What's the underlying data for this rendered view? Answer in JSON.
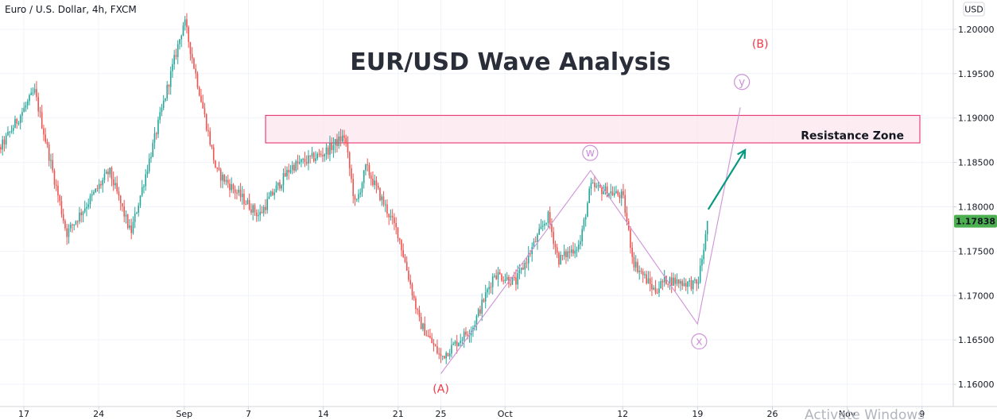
{
  "colors": {
    "up": "#26a69a",
    "down": "#ef5350",
    "grid": "#f0f3fa",
    "axis_line": "#d1d4dc",
    "wave": "#ce93d8",
    "wave_B": "#f23645",
    "arrow": "#089981",
    "zone_fill": "#fce4ec",
    "zone_border": "#e91e63",
    "last_price_bg": "#4caf50"
  },
  "header": {
    "symbol": "Euro / U.S. Dollar, 4h, FXCM",
    "currency_button": "USD"
  },
  "watermark": "Activate Windows",
  "chart_data": {
    "type": "candlestick",
    "title": "EUR/USD Wave Analysis",
    "xlabel": "",
    "ylabel": "",
    "ylim": [
      1.1575,
      1.2033
    ],
    "grid": true,
    "y_ticks": [
      "1.20000",
      "1.19500",
      "1.19000",
      "1.18500",
      "1.18000",
      "1.17500",
      "1.17000",
      "1.16500",
      "1.16000"
    ],
    "x_ticks": [
      "17",
      "24",
      "Sep",
      "7",
      "14",
      "21",
      "25",
      "Oct",
      "12",
      "19",
      "26",
      "Nov",
      "9"
    ],
    "last_price": "1.17838",
    "resistance_zone": {
      "label": "Resistance Zone",
      "low": 1.1872,
      "high": 1.1903
    },
    "wave_labels": [
      "(A)",
      "w",
      "x",
      "y",
      "(B)"
    ],
    "wave_path": [
      {
        "date": "2020-09-25",
        "price": 1.1612
      },
      {
        "date": "2020-10-09",
        "price": 1.1841
      },
      {
        "date": "2020-10-19",
        "price": 1.1668
      },
      {
        "date": "2020-10-23",
        "price": 1.1912
      }
    ],
    "projection_arrow": {
      "from": {
        "date": "2020-10-20",
        "price": 1.1797
      },
      "to": {
        "date": "2020-10-23",
        "price": 1.1872
      }
    },
    "anchors": [
      {
        "date": "2020-08-13",
        "price": 1.183
      },
      {
        "date": "2020-08-18",
        "price": 1.193
      },
      {
        "date": "2020-08-21",
        "price": 1.177
      },
      {
        "date": "2020-08-25",
        "price": 1.184
      },
      {
        "date": "2020-08-27",
        "price": 1.177
      },
      {
        "date": "2020-09-01",
        "price": 1.201
      },
      {
        "date": "2020-09-04",
        "price": 1.184
      },
      {
        "date": "2020-09-08",
        "price": 1.179
      },
      {
        "date": "2020-09-09",
        "price": 1.181
      },
      {
        "date": "2020-09-11",
        "price": 1.1845
      },
      {
        "date": "2020-09-14",
        "price": 1.186
      },
      {
        "date": "2020-09-16",
        "price": 1.188
      },
      {
        "date": "2020-09-17",
        "price": 1.18
      },
      {
        "date": "2020-09-18",
        "price": 1.1845
      },
      {
        "date": "2020-09-21",
        "price": 1.177
      },
      {
        "date": "2020-09-23",
        "price": 1.167
      },
      {
        "date": "2020-09-25",
        "price": 1.163
      },
      {
        "date": "2020-09-28",
        "price": 1.1665
      },
      {
        "date": "2020-09-30",
        "price": 1.1725
      },
      {
        "date": "2020-10-02",
        "price": 1.1715
      },
      {
        "date": "2020-10-05",
        "price": 1.179
      },
      {
        "date": "2020-10-06",
        "price": 1.174
      },
      {
        "date": "2020-10-08",
        "price": 1.1758
      },
      {
        "date": "2020-10-09",
        "price": 1.1823
      },
      {
        "date": "2020-10-12",
        "price": 1.1812
      },
      {
        "date": "2020-10-13",
        "price": 1.1738
      },
      {
        "date": "2020-10-15",
        "price": 1.1705
      },
      {
        "date": "2020-10-16",
        "price": 1.1718
      },
      {
        "date": "2020-10-19",
        "price": 1.1712
      },
      {
        "date": "2020-10-20",
        "price": 1.1784
      }
    ]
  }
}
